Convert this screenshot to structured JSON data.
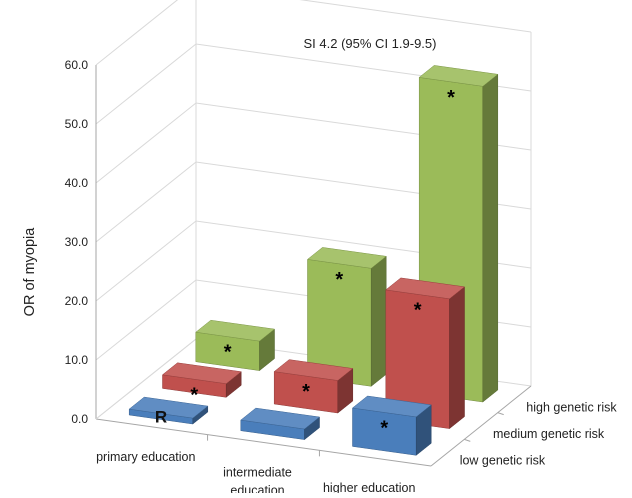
{
  "chart_data": {
    "type": "bar",
    "style": "3d-clustered-column",
    "title": "SI 4.2 (95% CI 1.9-9.5)",
    "ylabel": "OR of myopia",
    "xlabel": "",
    "ylim": [
      0,
      60
    ],
    "yticks": [
      "0.0",
      "10.0",
      "20.0",
      "30.0",
      "40.0",
      "50.0",
      "60.0"
    ],
    "categories": [
      {
        "line1": "primary education",
        "line2": ""
      },
      {
        "line1": "intermediate",
        "line2": "education"
      },
      {
        "line1": "higher education",
        "line2": ""
      }
    ],
    "grid": true,
    "series": [
      {
        "name": "low genetic risk",
        "color": "#4a7ebb",
        "values": [
          1,
          1.8,
          6.5
        ],
        "marks": [
          "R",
          "",
          "*"
        ]
      },
      {
        "name": "medium genetic risk",
        "color": "#c0504d",
        "values": [
          2.3,
          5.5,
          22
        ],
        "marks": [
          "*",
          "*",
          "*"
        ]
      },
      {
        "name": "high genetic risk",
        "color": "#9bbb59",
        "values": [
          5,
          20,
          53.5
        ],
        "marks": [
          "*",
          "*",
          "*"
        ]
      }
    ]
  }
}
